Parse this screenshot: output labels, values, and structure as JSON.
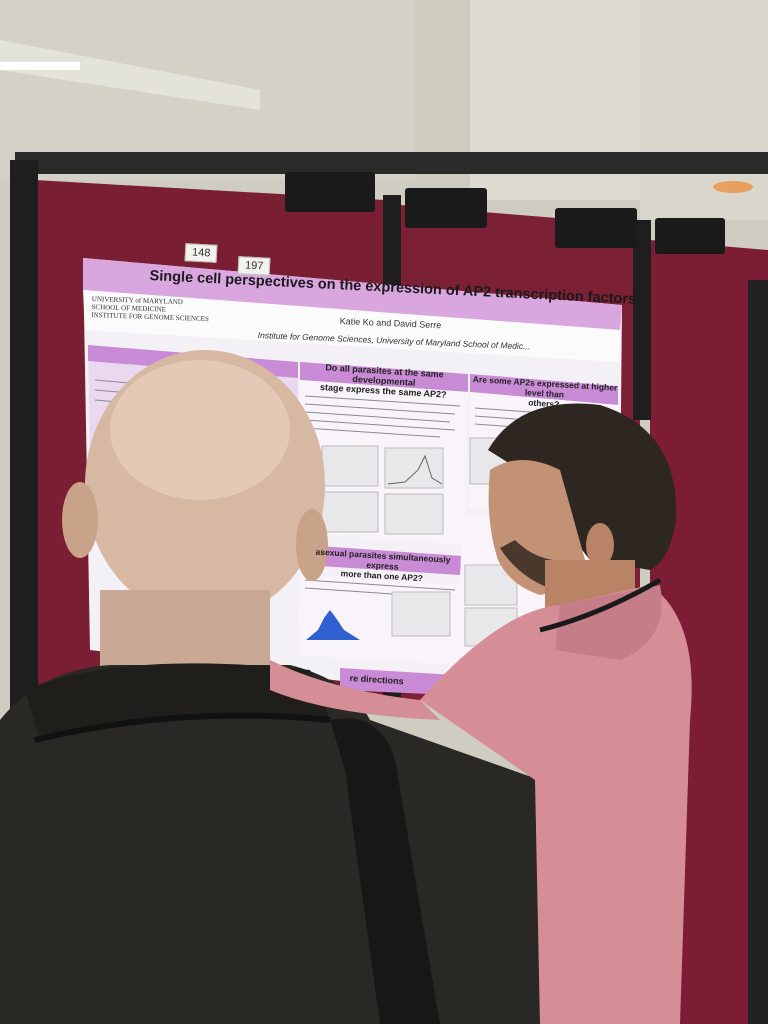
{
  "poster": {
    "title": "Single cell perspectives on the expression of AP2 transcription factors",
    "authors": "Katie Ko and David Serre",
    "affiliation": "Institute for Genome Sciences, University of Maryland School of Medic...",
    "logo_line1": "UNIVERSITY of MARYLAND",
    "logo_line2": "SCHOOL OF MEDICINE",
    "logo_line3": "INSTITUTE FOR GENOME SCIENCES",
    "section1_line1": "Do all parasites at the same developmental",
    "section1_line2": "stage express the same AP2?",
    "section2_line1": "Are some AP2s expressed at higher level than",
    "section2_line2": "others?",
    "section3_line1": "asexual parasites simultaneously express",
    "section3_line2": "more than one AP2?",
    "section4": "re directions"
  },
  "tags": {
    "left": "148",
    "right": "197"
  },
  "colors": {
    "board": "#7a1f33",
    "poster_header": "#d9a6e0",
    "poster_bg": "#f4f1f6",
    "shirt": "#d68e96",
    "jacket": "#2a2824"
  }
}
